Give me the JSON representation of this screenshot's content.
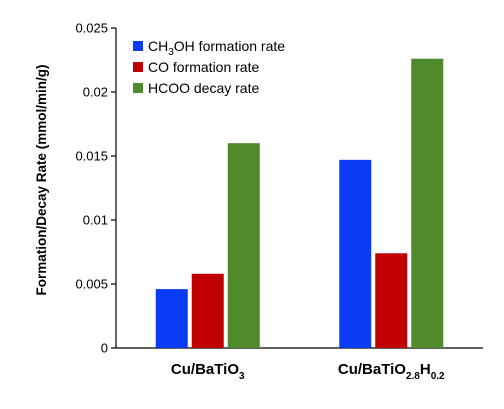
{
  "chart_data": {
    "type": "bar",
    "title": "",
    "xlabel": "",
    "ylabel": "Formation/Decay Rate (mmol/min/g)",
    "ylim": [
      0,
      0.025
    ],
    "yticks": [
      "0",
      "0.005",
      "0.01",
      "0.015",
      "0.02",
      "0.025"
    ],
    "ytick_values": [
      0,
      0.005,
      0.01,
      0.015,
      0.02,
      0.025
    ],
    "categories": [
      {
        "base": "Cu/BaTiO",
        "sub1": "3",
        "mid": "",
        "sub2": ""
      },
      {
        "base": "Cu/BaTiO",
        "sub1": "2.8",
        "mid": "H",
        "sub2": "0.2"
      }
    ],
    "series": [
      {
        "name_parts": [
          "CH",
          "3",
          "OH formation rate"
        ],
        "color": "#0a3cf5",
        "values": [
          0.0046,
          0.0147
        ]
      },
      {
        "name_parts": [
          "CO formation rate",
          "",
          ""
        ],
        "color": "#c00000",
        "values": [
          0.0058,
          0.0074
        ]
      },
      {
        "name_parts": [
          "HCOO decay rate",
          "",
          ""
        ],
        "color": "#4f8a2c",
        "values": [
          0.016,
          0.0226
        ]
      }
    ],
    "legend_position": "top-left",
    "grid": false
  }
}
